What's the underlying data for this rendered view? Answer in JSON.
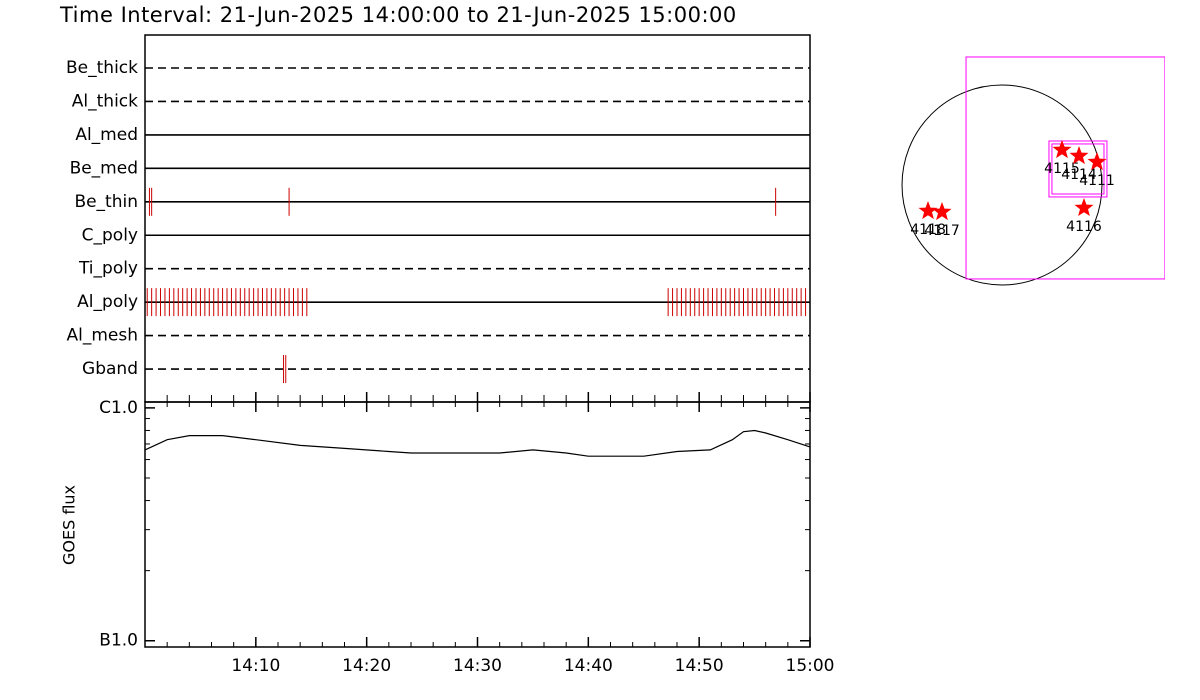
{
  "title": "Time Interval: 21-Jun-2025 14:00:00 to 21-Jun-2025 15:00:00",
  "chart_data": [
    {
      "type": "timeline",
      "categories": [
        "Be_thick",
        "Al_thick",
        "Al_med",
        "Be_med",
        "Be_thin",
        "C_poly",
        "Ti_poly",
        "Al_poly",
        "Al_mesh",
        "Gband"
      ],
      "line_styles": [
        "dashed",
        "dashed",
        "solid",
        "solid",
        "solid",
        "solid",
        "dashed",
        "solid",
        "dashed",
        "dashed"
      ],
      "events": [
        [],
        [],
        [],
        [],
        [
          0.4,
          0.6,
          13.0,
          56.9
        ],
        [],
        [],
        [
          0.2,
          0.6,
          1.0,
          1.4,
          1.8,
          2.2,
          2.6,
          3.0,
          3.4,
          3.8,
          4.2,
          4.6,
          5.0,
          5.4,
          5.8,
          6.2,
          6.6,
          7.0,
          7.4,
          7.8,
          8.2,
          8.6,
          9.0,
          9.4,
          9.8,
          10.2,
          10.6,
          11.0,
          11.4,
          11.8,
          12.2,
          12.6,
          13.0,
          13.4,
          13.8,
          14.2,
          14.6,
          47.2,
          47.6,
          48.0,
          48.4,
          48.8,
          49.2,
          49.6,
          50.0,
          50.4,
          50.8,
          51.2,
          51.6,
          52.0,
          52.4,
          52.8,
          53.2,
          53.6,
          54.0,
          54.4,
          54.8,
          55.2,
          55.6,
          56.0,
          56.4,
          56.8,
          57.2,
          57.6,
          58.0,
          58.4,
          58.8,
          59.2,
          59.6
        ],
        [],
        [
          12.5,
          12.7
        ]
      ],
      "xlim": [
        0,
        60
      ],
      "color": "#cc0000"
    },
    {
      "type": "line",
      "ylabel": "GOES flux",
      "x": [
        0,
        2,
        4,
        7,
        10,
        14,
        18,
        22,
        24,
        28,
        32,
        35,
        38,
        40,
        45,
        48,
        51,
        53,
        54,
        55,
        56,
        58,
        60
      ],
      "values": [
        6.6e-07,
        7.3e-07,
        7.6e-07,
        7.6e-07,
        7.3e-07,
        6.9e-07,
        6.7e-07,
        6.5e-07,
        6.4e-07,
        6.4e-07,
        6.4e-07,
        6.6e-07,
        6.4e-07,
        6.2e-07,
        6.2e-07,
        6.5e-07,
        6.6e-07,
        7.3e-07,
        7.9e-07,
        8e-07,
        7.8e-07,
        7.3e-07,
        6.8e-07
      ],
      "xlim": [
        0,
        60
      ],
      "xticks": [
        {
          "value": 10,
          "label": "14:10"
        },
        {
          "value": 20,
          "label": "14:20"
        },
        {
          "value": 30,
          "label": "14:30"
        },
        {
          "value": 40,
          "label": "14:40"
        },
        {
          "value": 50,
          "label": "14:50"
        },
        {
          "value": 60,
          "label": "15:00"
        }
      ],
      "ylim": [
        9.4e-08,
        1.06e-06
      ],
      "yticks": [
        {
          "value": 1e-07,
          "label": "B1.0"
        },
        {
          "value": 1e-06,
          "label": "C1.0"
        }
      ],
      "log_y": true,
      "color": "#000000"
    },
    {
      "type": "map",
      "solar_radius": 945,
      "boxes": [
        [
          -340,
          1210,
          1540,
          -888
        ],
        [
          444,
          416,
          992,
          -113
        ],
        [
          472,
          388,
          964,
          -85
        ]
      ],
      "x": [
        567,
        728,
        898,
        775,
        -699,
        -567
      ],
      "y": [
        331,
        274,
        217,
        -217,
        -246,
        -255
      ],
      "labels": [
        "4115",
        "4114",
        "4111",
        "4116",
        "4118",
        "4117"
      ],
      "color": "#ff0000",
      "box_color": "#ff00ff"
    }
  ]
}
